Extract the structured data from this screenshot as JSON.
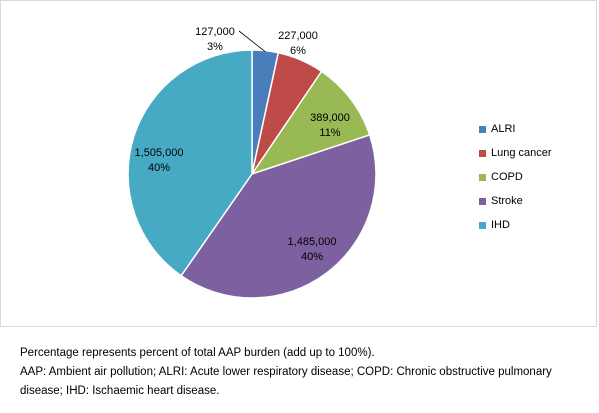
{
  "chart_data": {
    "type": "pie",
    "slices": [
      {
        "name": "ALRI",
        "value": 127000,
        "value_label": "127,000",
        "percent_label": "3%",
        "color": "#4a7ebb"
      },
      {
        "name": "Lung cancer",
        "value": 227000,
        "value_label": "227,000",
        "percent_label": "6%",
        "color": "#be4b48"
      },
      {
        "name": "COPD",
        "value": 389000,
        "value_label": "389,000",
        "percent_label": "11%",
        "color": "#98b954"
      },
      {
        "name": "Stroke",
        "value": 1485000,
        "value_label": "1,485,000",
        "percent_label": "40%",
        "color": "#7d60a0"
      },
      {
        "name": "IHD",
        "value": 1505000,
        "value_label": "1,505,000",
        "percent_label": "40%",
        "color": "#46aac5"
      }
    ],
    "legend_position": "right"
  },
  "notes": {
    "line1": "Percentage represents percent of total AAP burden (add up to 100%).",
    "line2": "AAP: Ambient air pollution; ALRI: Acute lower respiratory disease; COPD: Chronic obstructive pulmonary disease; IHD: Ischaemic heart disease."
  }
}
